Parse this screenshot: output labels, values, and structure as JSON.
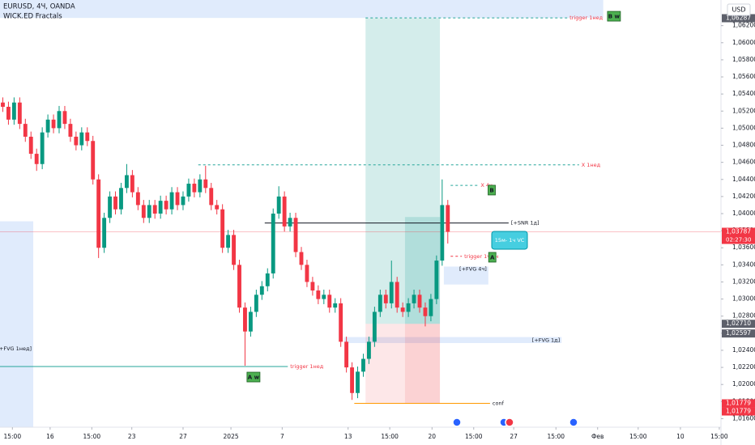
{
  "chart_data": {
    "type": "candlestick",
    "title": "EURUSD, 4Ч, OANDA",
    "subtitle": "WICK.ED Fractals",
    "currency": "USD",
    "up_color": "#089981",
    "down_color": "#f23645",
    "xlim": [
      -0.5,
      127.5
    ],
    "ylim": [
      1.015,
      1.065
    ],
    "xticks": [
      {
        "value": 1.7,
        "label": "15:00"
      },
      {
        "value": 8.4,
        "label": "16"
      },
      {
        "value": 15.8,
        "label": "15:00"
      },
      {
        "value": 22.9,
        "label": "23"
      },
      {
        "value": 32,
        "label": "27"
      },
      {
        "value": 40.5,
        "label": "2025"
      },
      {
        "value": 49.6,
        "label": "7"
      },
      {
        "value": 61.3,
        "label": "13"
      },
      {
        "value": 68.7,
        "label": "15:00"
      },
      {
        "value": 76.2,
        "label": "20"
      },
      {
        "value": 83.6,
        "label": "15:00"
      },
      {
        "value": 90.7,
        "label": "27"
      },
      {
        "value": 98.2,
        "label": "15:00"
      },
      {
        "value": 105.6,
        "label": "Фев"
      },
      {
        "value": 112.8,
        "label": "15:00"
      },
      {
        "value": 120.3,
        "label": "10"
      },
      {
        "value": 127.2,
        "label": "15:00"
      }
    ],
    "yticks": [
      {
        "value": 1.062,
        "label": "1,06200"
      },
      {
        "value": 1.06,
        "label": "1,06000"
      },
      {
        "value": 1.058,
        "label": "1,05800"
      },
      {
        "value": 1.056,
        "label": "1,05600"
      },
      {
        "value": 1.054,
        "label": "1,05400"
      },
      {
        "value": 1.052,
        "label": "1,05200"
      },
      {
        "value": 1.05,
        "label": "1,05000"
      },
      {
        "value": 1.048,
        "label": "1,04800"
      },
      {
        "value": 1.046,
        "label": "1,04600"
      },
      {
        "value": 1.044,
        "label": "1,04400"
      },
      {
        "value": 1.042,
        "label": "1,04200"
      },
      {
        "value": 1.04,
        "label": "1,04000"
      },
      {
        "value": 1.038,
        "label": "1,03800"
      },
      {
        "value": 1.036,
        "label": "1,03600"
      },
      {
        "value": 1.034,
        "label": "1,03400"
      },
      {
        "value": 1.032,
        "label": "1,03200"
      },
      {
        "value": 1.03,
        "label": "1,03000"
      },
      {
        "value": 1.028,
        "label": "1,02800"
      },
      {
        "value": 1.026,
        "label": "1,02600"
      },
      {
        "value": 1.024,
        "label": "1,02400"
      },
      {
        "value": 1.022,
        "label": "1,02200"
      },
      {
        "value": 1.02,
        "label": "1,02000"
      },
      {
        "value": 1.018,
        "label": "1,01800"
      },
      {
        "value": 1.016,
        "label": "1,01600"
      }
    ],
    "open": [
      1.053,
      1.0525,
      1.051,
      1.053,
      1.0505,
      1.049,
      1.047,
      1.0458,
      1.0495,
      1.051,
      1.05,
      1.052,
      1.0505,
      1.049,
      1.048,
      1.0495,
      1.0485,
      1.044,
      1.036,
      1.0395,
      1.042,
      1.0405,
      1.043,
      1.0445,
      1.0425,
      1.041,
      1.0395,
      1.041,
      1.04,
      1.0415,
      1.0405,
      1.0425,
      1.041,
      1.042,
      1.0435,
      1.0425,
      1.044,
      1.043,
      1.041,
      1.0405,
      1.036,
      1.0375,
      1.034,
      1.029,
      1.0262,
      1.0285,
      1.0305,
      1.0315,
      1.033,
      1.04,
      1.042,
      1.0385,
      1.0395,
      1.0355,
      1.034,
      1.032,
      1.031,
      1.03,
      1.0305,
      1.029,
      1.0295,
      1.025,
      1.022,
      1.019,
      1.0215,
      1.023,
      1.025,
      1.0285,
      1.0305,
      1.0295,
      1.032,
      1.029,
      1.0285,
      1.0295,
      1.0305,
      1.029,
      1.028,
      1.03,
      1.0345,
      1.041
    ],
    "high": [
      1.0536,
      1.0531,
      1.0536,
      1.0536,
      1.0511,
      1.0496,
      1.0476,
      1.0501,
      1.0516,
      1.0516,
      1.0526,
      1.0526,
      1.0511,
      1.0496,
      1.0501,
      1.0501,
      1.0491,
      1.0446,
      1.0401,
      1.0426,
      1.0426,
      1.0436,
      1.0458,
      1.0451,
      1.0431,
      1.0416,
      1.0416,
      1.0416,
      1.0421,
      1.0421,
      1.0431,
      1.0431,
      1.0426,
      1.0441,
      1.0441,
      1.0446,
      1.0456,
      1.0436,
      1.0416,
      1.0411,
      1.0381,
      1.0381,
      1.0346,
      1.0296,
      1.0291,
      1.0311,
      1.0321,
      1.0336,
      1.0406,
      1.0432,
      1.0426,
      1.0401,
      1.0401,
      1.0361,
      1.0346,
      1.0326,
      1.0316,
      1.0311,
      1.0311,
      1.0301,
      1.0301,
      1.0256,
      1.0226,
      1.0221,
      1.0236,
      1.0256,
      1.0291,
      1.0311,
      1.0311,
      1.0345,
      1.0326,
      1.0296,
      1.0301,
      1.0311,
      1.0311,
      1.0296,
      1.0306,
      1.0351,
      1.044,
      1.0416
    ],
    "low": [
      1.0519,
      1.0504,
      1.0504,
      1.0499,
      1.0484,
      1.0464,
      1.045,
      1.0452,
      1.0489,
      1.0494,
      1.0494,
      1.0499,
      1.0484,
      1.0474,
      1.0474,
      1.0479,
      1.0434,
      1.0348,
      1.0354,
      1.0389,
      1.0399,
      1.0399,
      1.0424,
      1.0419,
      1.0404,
      1.0389,
      1.0389,
      1.0394,
      1.0394,
      1.0399,
      1.0399,
      1.0404,
      1.0404,
      1.0414,
      1.0419,
      1.0419,
      1.0424,
      1.0404,
      1.0399,
      1.0354,
      1.0354,
      1.0334,
      1.0284,
      1.0222,
      1.0256,
      1.0279,
      1.0299,
      1.0309,
      1.0324,
      1.0394,
      1.0379,
      1.0379,
      1.0349,
      1.0334,
      1.0314,
      1.0304,
      1.0294,
      1.0294,
      1.0284,
      1.0284,
      1.0244,
      1.0214,
      1.0182,
      1.0184,
      1.0209,
      1.0224,
      1.0244,
      1.0279,
      1.0289,
      1.0289,
      1.0284,
      1.0279,
      1.0279,
      1.0289,
      1.0284,
      1.0268,
      1.0274,
      1.0294,
      1.0339,
      1.0365
    ],
    "close": [
      1.0525,
      1.051,
      1.053,
      1.0505,
      1.049,
      1.047,
      1.0458,
      1.0495,
      1.051,
      1.05,
      1.052,
      1.0505,
      1.049,
      1.048,
      1.0495,
      1.0485,
      1.044,
      1.036,
      1.0395,
      1.042,
      1.0405,
      1.043,
      1.0445,
      1.0425,
      1.041,
      1.0395,
      1.041,
      1.04,
      1.0415,
      1.0405,
      1.0425,
      1.041,
      1.042,
      1.0435,
      1.0425,
      1.044,
      1.043,
      1.041,
      1.0405,
      1.036,
      1.0375,
      1.034,
      1.029,
      1.0262,
      1.0285,
      1.0305,
      1.0315,
      1.033,
      1.04,
      1.042,
      1.0385,
      1.0395,
      1.0355,
      1.034,
      1.032,
      1.031,
      1.03,
      1.0305,
      1.029,
      1.0295,
      1.025,
      1.022,
      1.019,
      1.0215,
      1.023,
      1.025,
      1.0285,
      1.0305,
      1.0295,
      1.032,
      1.029,
      1.0285,
      1.0295,
      1.0305,
      1.029,
      1.028,
      1.03,
      1.0345,
      1.041,
      1.03787
    ],
    "zones": [
      {
        "from": -0.5,
        "to": 106.6,
        "top": 1.065,
        "bottom": 1.0629,
        "color": "#dbe8fb"
      },
      {
        "from": -0.5,
        "to": 5.4,
        "top": 1.0391,
        "bottom": 1.015,
        "color": "#dbe8fb",
        "label": "[+FVG 1нед]",
        "label_price": 1.0242
      },
      {
        "from": 78.3,
        "to": 86.2,
        "top": 1.0338,
        "bottom": 1.0317,
        "color": "#dbe8fb",
        "label": "[+FVG 4ч]",
        "label_price": 1.0335
      },
      {
        "from": 60.6,
        "to": 99.2,
        "top": 1.02555,
        "bottom": 1.02485,
        "color": "#dbe8fb",
        "label": "[+FVG 1д]",
        "label_price": 1.0252
      }
    ],
    "positions": [
      {
        "from": 64.4,
        "to": 77.6,
        "target": 1.06287,
        "entry": 1.0271,
        "stop": 1.01779
      },
      {
        "from": 71.4,
        "to": 77.6,
        "target": 1.0396,
        "entry": 1.0271,
        "stop": 1.01779
      }
    ],
    "levels": [
      {
        "label": "trigger 1нед",
        "price": 1.0629,
        "from": 64.4,
        "to": 100.2,
        "color": "#26a69a",
        "dash": true,
        "label_color": "#f23645"
      },
      {
        "label": "X 1нед",
        "price": 1.0457,
        "from": 34.7,
        "to": 102.3,
        "color": "#26a69a",
        "dash": true,
        "label_color": "#f23645"
      },
      {
        "label": "X 4ч",
        "price": 1.0433,
        "from": 79.5,
        "to": 84.4,
        "color": "#26a69a",
        "dash": true,
        "label_color": "#f23645"
      },
      {
        "label": "[+SNR 1д]",
        "price": 1.0389,
        "from": 46.5,
        "to": 89.8,
        "color": "#131722",
        "dash": false,
        "label_color": "#131722"
      },
      {
        "label": "trigger 1ч/4ч",
        "price": 1.035,
        "from": 79.5,
        "to": 81.5,
        "color": "#f23645",
        "dash": true,
        "label_color": "#f23645"
      },
      {
        "label": "trigger 1нед",
        "price": 1.0221,
        "from": -0.5,
        "to": 50.6,
        "color": "#26a69a",
        "dash": false,
        "label_color": "#f23645"
      },
      {
        "label": "conf",
        "price": 1.01779,
        "from": 62.4,
        "to": 86.5,
        "color": "#ff9800",
        "dash": false,
        "label_color": "#131722"
      }
    ],
    "markers": [
      {
        "label": "B w",
        "x": 108.5,
        "price": 1.0631
      },
      {
        "label": "A w",
        "x": 44.5,
        "price": 1.02087
      },
      {
        "label": "B",
        "x": 86.8,
        "price": 1.04275
      },
      {
        "label": "A",
        "x": 86.9,
        "price": 1.03489
      }
    ],
    "callout": {
      "label": "15м- 1ч VC",
      "x": 86.8,
      "price": 1.03688
    },
    "price_labels": [
      {
        "value": 1.06287,
        "label": "1,06287",
        "color": "#5d606b"
      },
      {
        "value": 1.03787,
        "label": "1,03787",
        "sub": "02:27:30",
        "color": "#f23645"
      },
      {
        "value": 1.0271,
        "label": "1,02710",
        "color": "#5d606b"
      },
      {
        "value": 1.02597,
        "label": "1,02597",
        "color": "#5d606b"
      },
      {
        "value": 1.01779,
        "label": "1,01779",
        "color": "#f23645"
      },
      {
        "value": 1.01779,
        "label": "1,01779",
        "color": "#f23645"
      }
    ]
  }
}
